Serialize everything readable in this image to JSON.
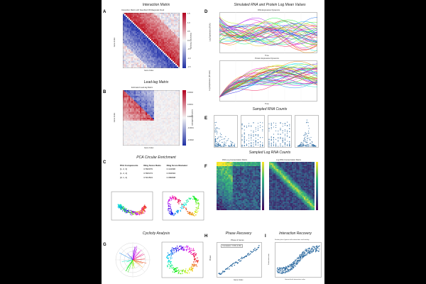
{
  "panels": {
    "A": {
      "letter": "A",
      "section": "Interaction Matrix",
      "title": "Interaction Matrix with Specified Off-Diagonals Fixed",
      "xlabel": "Gene Index",
      "ylabel": "Gene Index",
      "cbar_label": "Interaction Strength",
      "cbar_ticks": [
        "1.5",
        "1.0",
        "0.5",
        "0.0",
        "-0.5",
        "-1.0",
        "-1.5"
      ]
    },
    "B": {
      "letter": "B",
      "section": "Lead-lag Matrix",
      "title": "Estimated Lead-lag Matrix",
      "xlabel": "Gene Index",
      "ylabel": "Gene Index",
      "cbar_label": "Lead-lag Coefficient",
      "cbar_ticks": [
        "0.0002",
        "0.0001",
        "0.0000",
        "-0.0001",
        "-0.0002"
      ]
    },
    "C": {
      "letter": "C",
      "section": "PCA Circular Enrichment",
      "table": {
        "headers": [
          "PCA Components",
          "Ring Score Ratio",
          "Ring Score Diameter"
        ],
        "rows": [
          [
            "[1, 2, 3]",
            "0.590079",
            "0.144996"
          ],
          [
            "[1, 2, 4]",
            "0.595473",
            "0.094694"
          ],
          [
            "[0, 1, 2]",
            "0.521504",
            "0.086808"
          ]
        ]
      }
    },
    "D": {
      "letter": "D",
      "section": "Simulated RNA and Protein Log Mean Values",
      "top_title": "RNA Expression Dynamics",
      "bottom_title": "Protein Expression Dynamics",
      "xlabel": "Time",
      "ylabel_top": "Log Expression (RNA)",
      "ylabel_bottom": "Log Expression (Protein)"
    },
    "E": {
      "letter": "E",
      "section": "Sampled RNA Counts"
    },
    "F": {
      "letter": "F",
      "section": "Sampled Log RNA Counts",
      "left_title": "RNA Log Concentration Matrix",
      "right_title": "Log RNA Concentration Matrix"
    },
    "G": {
      "letter": "G",
      "section": "Cyclicity Analysis"
    },
    "H": {
      "letter": "H",
      "section": "Phase Recovery",
      "title": "Phase of Genes",
      "xlabel": "Gene Index",
      "ylabel": "Phase",
      "legend": "Correlation: 0.99 (1.00)"
    },
    "I": {
      "letter": "I",
      "section": "Interaction Recovery",
      "title": "Scatter plot of genes with interactions and overlap",
      "xlabel": "Ground truth interaction value",
      "ylabel": "Estimated value"
    }
  },
  "colors": {
    "red": "#d7262b",
    "blue": "#2a43b8",
    "teal": "#1f8fa8",
    "point": "#2c6aa0"
  }
}
